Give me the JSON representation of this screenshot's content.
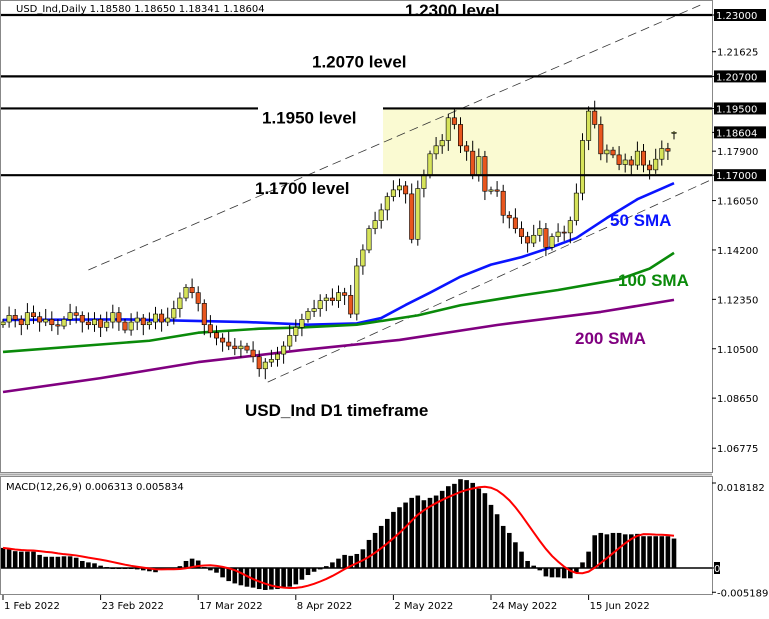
{
  "header": {
    "symbol_line": "USD_Ind,Daily  1.18580 1.18650 1.18341 1.18604"
  },
  "colors": {
    "bull": "#d6e35a",
    "bear": "#e8561e",
    "sma50": "#0a14ff",
    "sma100": "#0a8a0a",
    "sma200": "#800080",
    "macd_signal": "#ff0000",
    "zone": "#fafad2"
  },
  "chart_data": [
    {
      "type": "candlestick",
      "title": "USD_Ind,Daily",
      "last_bar": {
        "open": 1.1858,
        "high": 1.1865,
        "low": 1.18341,
        "close": 1.18604
      },
      "ylim": [
        1.06,
        1.234
      ],
      "closes": [
        1.115,
        1.1175,
        1.116,
        1.114,
        1.1185,
        1.117,
        1.115,
        1.116,
        1.114,
        1.1135,
        1.116,
        1.1185,
        1.1175,
        1.115,
        1.114,
        1.116,
        1.113,
        1.115,
        1.1185,
        1.115,
        1.112,
        1.115,
        1.1165,
        1.114,
        1.115,
        1.118,
        1.115,
        1.1165,
        1.12,
        1.124,
        1.128,
        1.126,
        1.122,
        1.114,
        1.111,
        1.109,
        1.1075,
        1.106,
        1.105,
        1.106,
        1.1045,
        1.102,
        1.0975,
        1.1,
        1.101,
        1.103,
        1.106,
        1.11,
        1.113,
        1.116,
        1.119,
        1.12,
        1.123,
        1.124,
        1.123,
        1.126,
        1.125,
        1.118,
        1.136,
        1.142,
        1.15,
        1.153,
        1.157,
        1.162,
        1.1645,
        1.166,
        1.163,
        1.146,
        1.165,
        1.17,
        1.178,
        1.181,
        1.183,
        1.1915,
        1.189,
        1.181,
        1.179,
        1.17,
        1.177,
        1.164,
        1.1645,
        1.164,
        1.155,
        1.154,
        1.15,
        1.147,
        1.1446,
        1.1475,
        1.15,
        1.143,
        1.147,
        1.1487,
        1.1484,
        1.153,
        1.1633,
        1.183,
        1.194,
        1.189,
        1.178,
        1.1794,
        1.1776,
        1.174,
        1.1757,
        1.1738,
        1.179,
        1.1738,
        1.172,
        1.176,
        1.18,
        1.179,
        1.186
      ],
      "sma": [
        {
          "name": "50 SMA",
          "color": "#0a14ff",
          "points": [
            [
              0,
              1.1158
            ],
            [
              20,
              1.116
            ],
            [
              40,
              1.115
            ],
            [
              50,
              1.114
            ],
            [
              58,
              1.1145
            ],
            [
              62,
              1.1165
            ],
            [
              66,
              1.1214
            ],
            [
              70,
              1.126
            ],
            [
              75,
              1.132
            ],
            [
              80,
              1.1365
            ],
            [
              85,
              1.1393
            ],
            [
              90,
              1.1431
            ],
            [
              94,
              1.1465
            ],
            [
              99,
              1.154
            ],
            [
              104,
              1.161
            ],
            [
              108,
              1.165
            ],
            [
              110,
              1.167
            ]
          ]
        },
        {
          "name": "100 SMA",
          "color": "#0a8a0a",
          "points": [
            [
              0,
              1.1038
            ],
            [
              24,
              1.108
            ],
            [
              32,
              1.111
            ],
            [
              42,
              1.1125
            ],
            [
              49,
              1.113
            ],
            [
              58,
              1.114
            ],
            [
              68,
              1.1175
            ],
            [
              75,
              1.1213
            ],
            [
              85,
              1.125
            ],
            [
              91,
              1.127
            ],
            [
              101,
              1.131
            ],
            [
              106,
              1.135
            ],
            [
              110,
              1.1409
            ]
          ]
        },
        {
          "name": "200 SMA",
          "color": "#800080",
          "points": [
            [
              0,
              1.0888
            ],
            [
              16,
              1.094
            ],
            [
              32,
              1.1
            ],
            [
              49,
              1.1045
            ],
            [
              65,
              1.1083
            ],
            [
              81,
              1.1139
            ],
            [
              98,
              1.1188
            ],
            [
              110,
              1.1233
            ]
          ]
        }
      ],
      "levels": [
        {
          "price": 1.23,
          "label": "1.2300 level"
        },
        {
          "price": 1.207,
          "label": "1.2070 level"
        },
        {
          "price": 1.195,
          "label": "1.1950 level"
        },
        {
          "price": 1.17,
          "label": "1.1700 level"
        }
      ],
      "zone": {
        "from_bar": 62.3,
        "low": 1.17,
        "high": 1.195
      },
      "channel": [
        {
          "from": [
            14,
            1.1345
          ],
          "to": [
            114.3,
            1.2337
          ]
        },
        {
          "from": [
            43.4,
            1.0925
          ],
          "to": [
            116,
            1.1682
          ]
        }
      ],
      "annotations": {
        "sma50": "50 SMA",
        "sma100": "100 SMA",
        "sma200": "200 SMA",
        "timeframe": "USD_Ind D1 timeframe"
      },
      "y_ticks": [
        {
          "v": 1.23,
          "t": "1.23000",
          "hl": true
        },
        {
          "v": 1.21625,
          "t": "1.21625",
          "hl": false
        },
        {
          "v": 1.207,
          "t": "1.20700",
          "hl": true
        },
        {
          "v": 1.195,
          "t": "1.19500",
          "hl": true
        },
        {
          "v": 1.18604,
          "t": "1.18604",
          "hl": true
        },
        {
          "v": 1.179,
          "t": "1.17900",
          "hl": false
        },
        {
          "v": 1.17,
          "t": "1.17000",
          "hl": true
        },
        {
          "v": 1.1605,
          "t": "1.16050",
          "hl": false
        },
        {
          "v": 1.142,
          "t": "1.14200",
          "hl": false
        },
        {
          "v": 1.1235,
          "t": "1.12350",
          "hl": false
        },
        {
          "v": 1.105,
          "t": "1.10500",
          "hl": false
        },
        {
          "v": 1.0865,
          "t": "1.08650",
          "hl": false
        },
        {
          "v": 1.06775,
          "t": "1.06775",
          "hl": false
        }
      ],
      "x_ticks": [
        {
          "bar": 0,
          "t": "1 Feb 2022"
        },
        {
          "bar": 16,
          "t": "23 Feb 2022"
        },
        {
          "bar": 32,
          "t": "17 Mar 2022"
        },
        {
          "bar": 48,
          "t": "8 Apr 2022"
        },
        {
          "bar": 64,
          "t": "2 May 2022"
        },
        {
          "bar": 80,
          "t": "24 May 2022"
        },
        {
          "bar": 96,
          "t": "15 Jun 2022"
        }
      ]
    },
    {
      "type": "bar",
      "title": "MACD(12,26,9) 0.006313 0.005834",
      "params": "12,26,9",
      "ylim": [
        -0.005189,
        0.018182
      ],
      "y_ticks": [
        {
          "v": 0.018182,
          "t": "0.018182",
          "hl": false
        },
        {
          "v": 0,
          "t": "0.00",
          "hl": true
        },
        {
          "v": -0.005189,
          "t": "-0.005189",
          "hl": false
        }
      ],
      "histogram": [
        0.0043,
        0.004,
        0.0036,
        0.0035,
        0.0035,
        0.0035,
        0.0028,
        0.0024,
        0.0024,
        0.0024,
        0.0025,
        0.0025,
        0.0022,
        0.0015,
        0.0012,
        0.001,
        0.0005,
        0.0002,
        -0.0002,
        0.0,
        0.0,
        0.0,
        -0.0003,
        -0.0005,
        -0.0007,
        -0.0009,
        0.0,
        0.0,
        0.0,
        0.0004,
        0.0015,
        0.002,
        0.0016,
        0.0002,
        -0.0005,
        -0.001,
        -0.002,
        -0.0028,
        -0.0033,
        -0.0037,
        -0.004,
        -0.0042,
        -0.0045,
        -0.0047,
        -0.0046,
        -0.0045,
        -0.0043,
        -0.004,
        -0.0035,
        -0.0025,
        -0.0015,
        -0.0008,
        -0.0003,
        0.0004,
        0.0012,
        0.002,
        0.0028,
        0.0026,
        0.003,
        0.004,
        0.006,
        0.0075,
        0.009,
        0.0105,
        0.012,
        0.013,
        0.014,
        0.015,
        0.0155,
        0.0145,
        0.015,
        0.0155,
        0.0165,
        0.0175,
        0.018,
        0.019,
        0.0188,
        0.0182,
        0.017,
        0.016,
        0.0135,
        0.0115,
        0.009,
        0.0075,
        0.0055,
        0.0035,
        0.0015,
        0.0005,
        -0.0005,
        -0.0018,
        -0.002,
        -0.002,
        -0.0022,
        -0.0022,
        -0.001,
        0.0012,
        0.0035,
        0.007,
        0.0075,
        0.0072,
        0.0075,
        0.0075,
        0.0072,
        0.0072,
        0.0073,
        0.0068,
        0.0068,
        0.0068,
        0.0068,
        0.0068,
        0.0063
      ]
    }
  ]
}
